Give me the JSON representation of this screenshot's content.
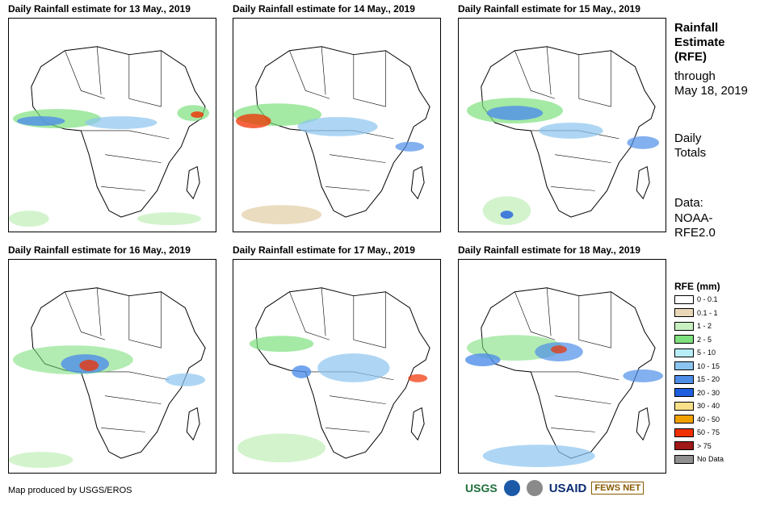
{
  "panels": [
    {
      "title": "Daily Rainfall estimate for 13 May., 2019"
    },
    {
      "title": "Daily Rainfall estimate for 14 May., 2019"
    },
    {
      "title": "Daily Rainfall estimate for 15 May., 2019"
    },
    {
      "title": "Daily Rainfall estimate for 16 May., 2019"
    },
    {
      "title": "Daily Rainfall estimate for 17 May., 2019"
    },
    {
      "title": "Daily Rainfall estimate for 18 May., 2019"
    }
  ],
  "side": {
    "title_line1": "Rainfall",
    "title_line2": "Estimate",
    "title_line3": "(RFE)",
    "through": "through",
    "date": "May 18, 2019",
    "daily": "Daily",
    "totals": "Totals",
    "data_label": "Data:",
    "data_source1": "NOAA-",
    "data_source2": "RFE2.0"
  },
  "legend": {
    "title": "RFE (mm)",
    "items": [
      {
        "label": "0 - 0.1",
        "color": "#ffffff"
      },
      {
        "label": "0.1 - 1",
        "color": "#e8d8b8"
      },
      {
        "label": "1 - 2",
        "color": "#c8f0c0"
      },
      {
        "label": "2 - 5",
        "color": "#7ee07e"
      },
      {
        "label": "5 - 10",
        "color": "#b8eef8"
      },
      {
        "label": "10 - 15",
        "color": "#8cc4f0"
      },
      {
        "label": "15 - 20",
        "color": "#4f8ee8"
      },
      {
        "label": "20 - 30",
        "color": "#1e5fe0"
      },
      {
        "label": "30 - 40",
        "color": "#f8e08a"
      },
      {
        "label": "40 - 50",
        "color": "#f0a000"
      },
      {
        "label": "50 - 75",
        "color": "#f03000"
      },
      {
        "label": "> 75",
        "color": "#a01818"
      },
      {
        "label": "No Data",
        "color": "#909090"
      }
    ]
  },
  "footer": {
    "credit": "Map produced by USGS/EROS",
    "logo_usgs": "USGS",
    "logo_usaid": "USAID",
    "logo_fews": "FEWS NET"
  }
}
